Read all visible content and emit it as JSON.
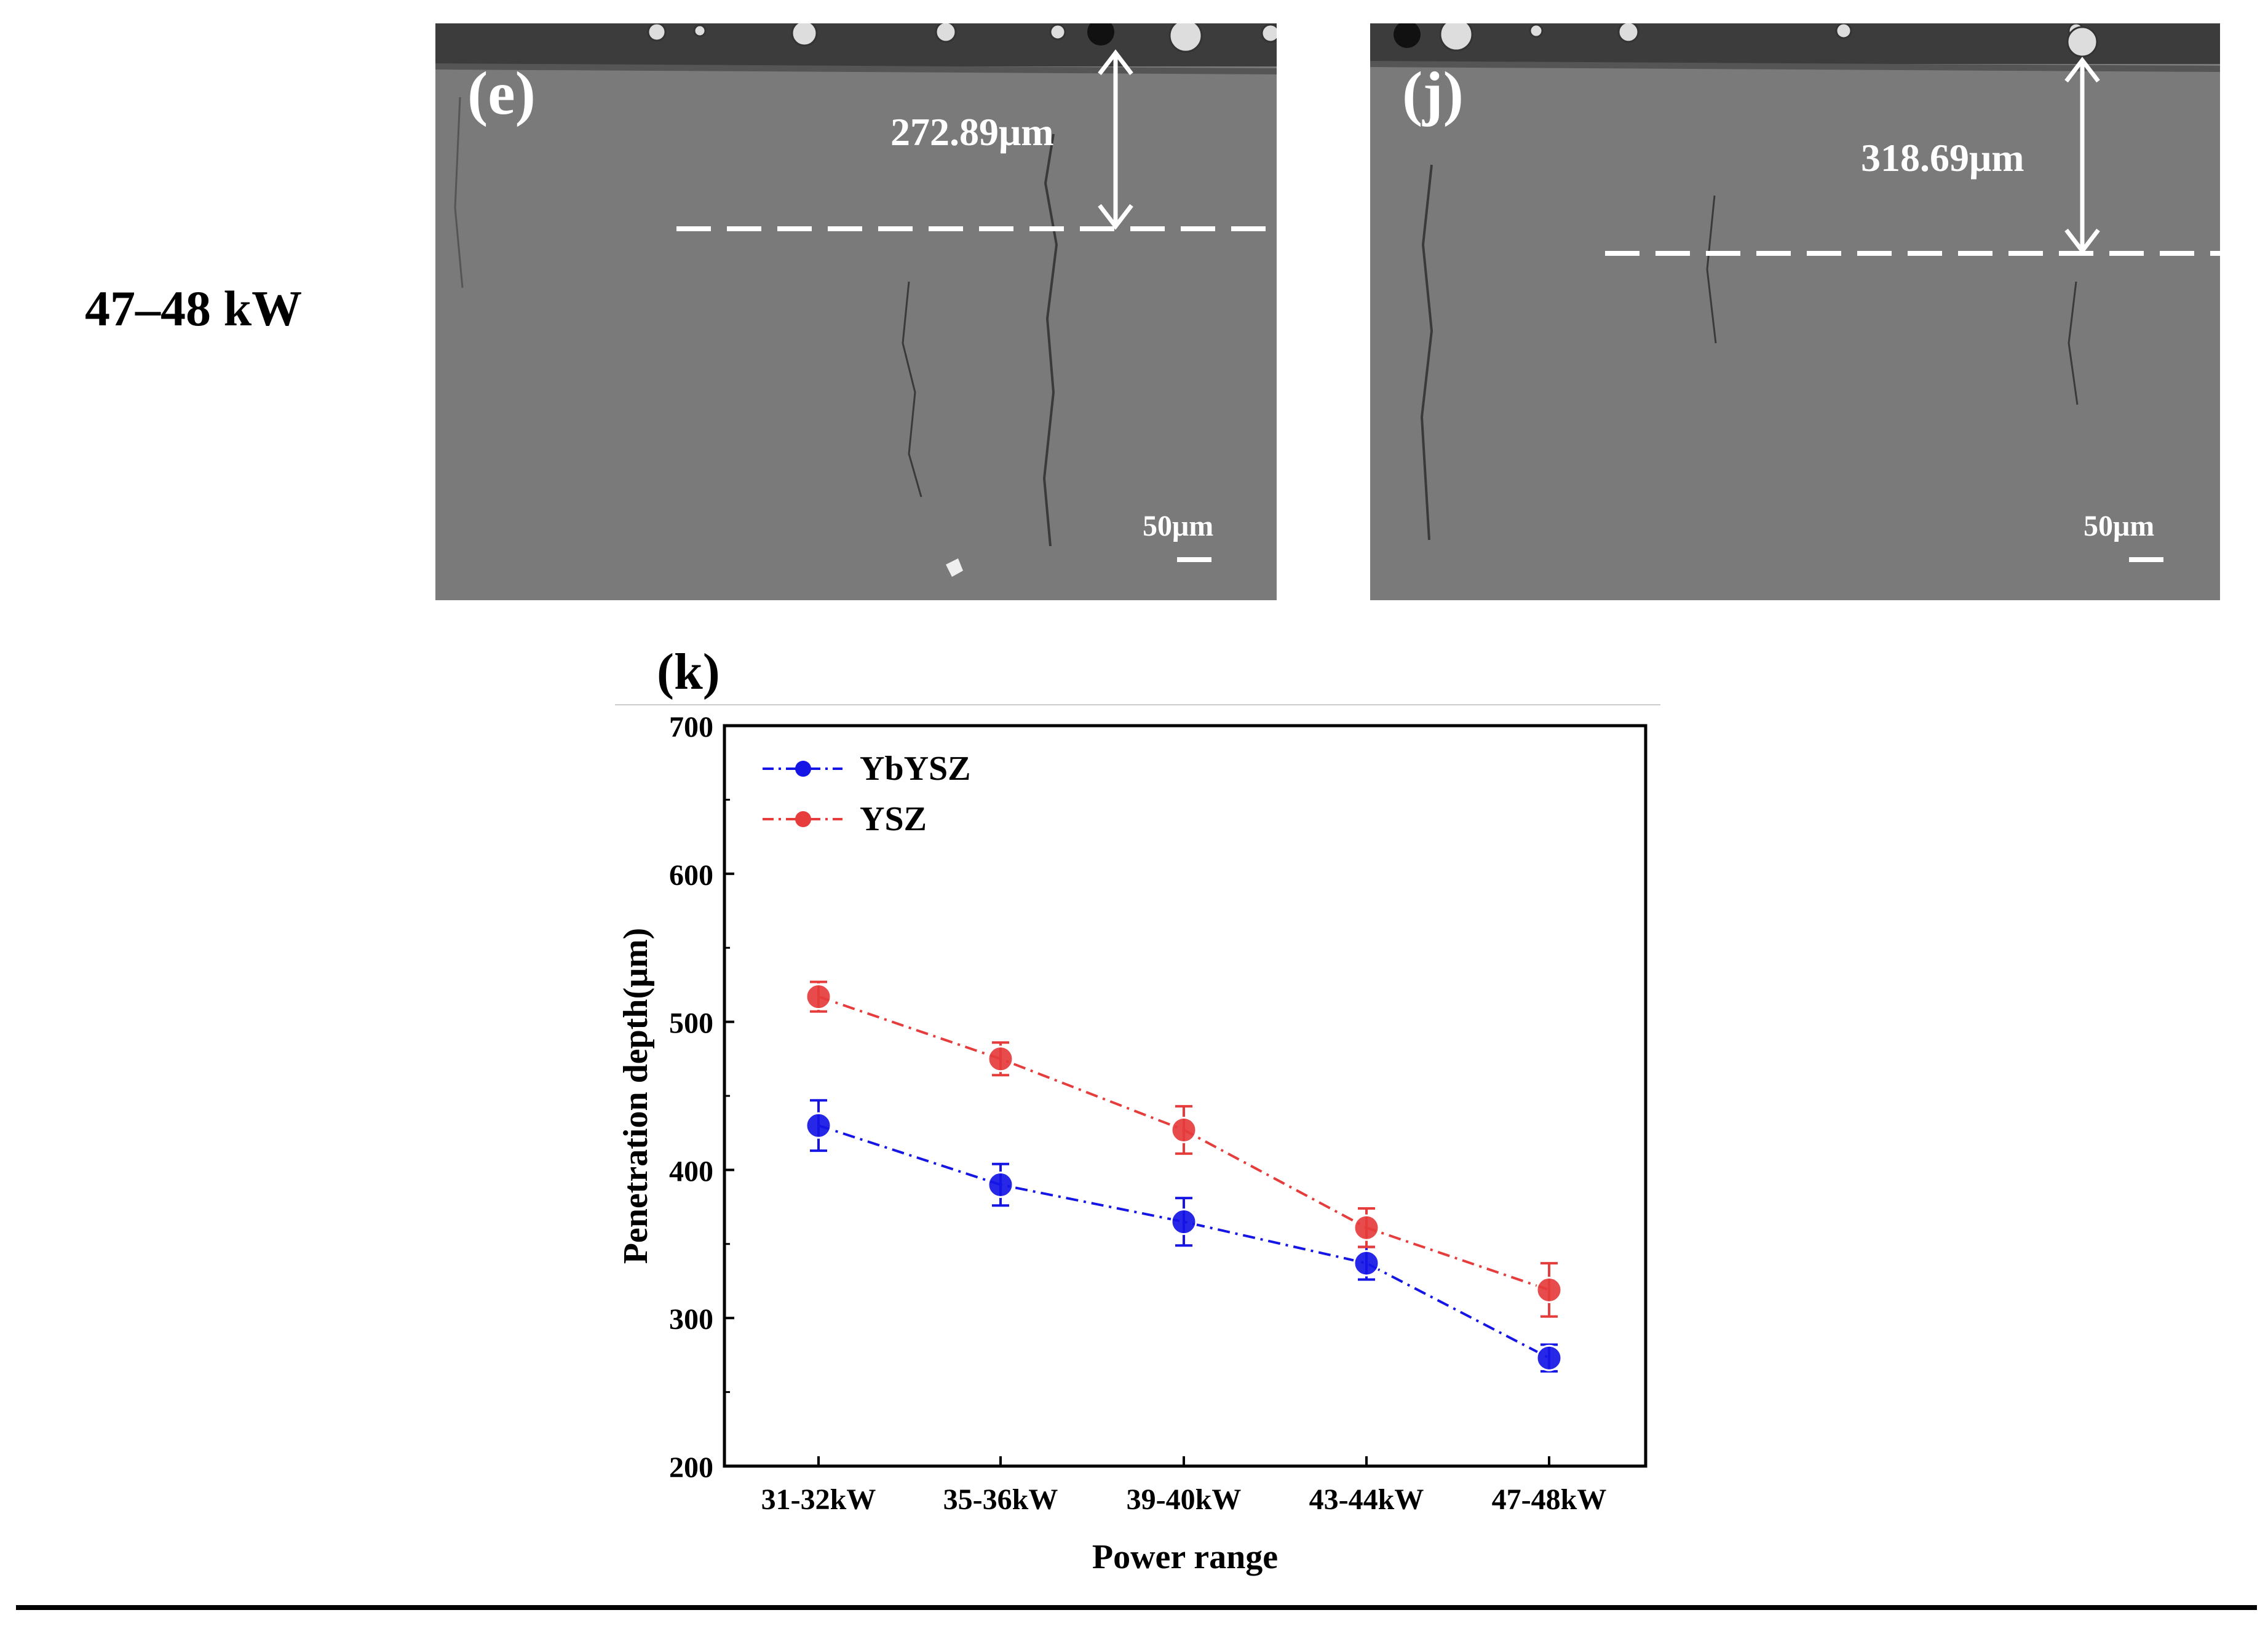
{
  "row_label": "47–48 kW",
  "micrographs": [
    {
      "id": "e",
      "label": "(e)",
      "measurement": "272.89μm",
      "scale_bar": "50μm"
    },
    {
      "id": "j",
      "label": "(j)",
      "measurement": "318.69μm",
      "scale_bar": "50μm"
    }
  ],
  "colors": {
    "yb": "#1515e6",
    "ysz": "#e63c3c",
    "sem_bg": "#7a7a7a"
  },
  "chart_data": {
    "type": "line",
    "panel_label": "(k)",
    "xlabel": "Power range",
    "ylabel": "Penetration depth(μm)",
    "categories": [
      "31-32kW",
      "35-36kW",
      "39-40kW",
      "43-44kW",
      "47-48kW"
    ],
    "ylim": [
      200,
      700
    ],
    "yticks": [
      200,
      300,
      400,
      500,
      600,
      700
    ],
    "series": [
      {
        "name": "YbYSZ",
        "values": [
          430,
          390,
          365,
          337,
          273
        ],
        "errors": [
          17,
          14,
          16,
          11,
          9
        ]
      },
      {
        "name": "YSZ",
        "values": [
          517,
          475,
          427,
          361,
          319
        ],
        "errors": [
          10,
          11,
          16,
          13,
          18
        ]
      }
    ]
  }
}
